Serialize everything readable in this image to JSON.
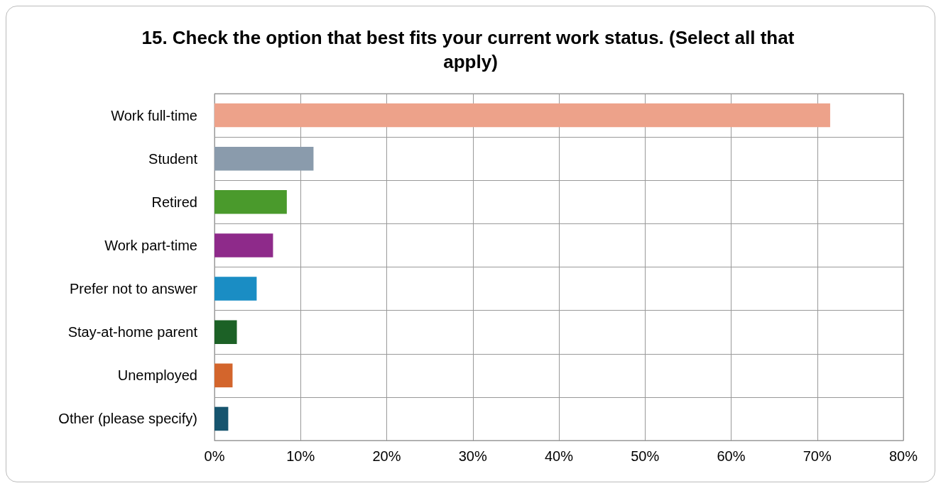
{
  "chart_data": {
    "type": "bar",
    "orientation": "horizontal",
    "title": "15. Check the option that best fits your current work status. (Select all that apply)",
    "categories": [
      "Work full-time",
      "Student",
      "Retired",
      "Work part-time",
      "Prefer not to answer",
      "Stay-at-home parent",
      "Unemployed",
      "Other (please specify)"
    ],
    "values": [
      71.5,
      11.5,
      8.4,
      6.8,
      4.9,
      2.6,
      2.1,
      1.6
    ],
    "colors": [
      "#eda28a",
      "#8a9bac",
      "#4a9a2c",
      "#8e2a8a",
      "#1a8dc4",
      "#1c6126",
      "#d3652c",
      "#16546e"
    ],
    "xlim": [
      0,
      80
    ],
    "xticks": [
      {
        "value": 0,
        "label": "0%"
      },
      {
        "value": 10,
        "label": "10%"
      },
      {
        "value": 20,
        "label": "20%"
      },
      {
        "value": 30,
        "label": "30%"
      },
      {
        "value": 40,
        "label": "40%"
      },
      {
        "value": 50,
        "label": "50%"
      },
      {
        "value": 60,
        "label": "60%"
      },
      {
        "value": 70,
        "label": "70%"
      },
      {
        "value": 80,
        "label": "80%"
      }
    ],
    "grid": true
  }
}
